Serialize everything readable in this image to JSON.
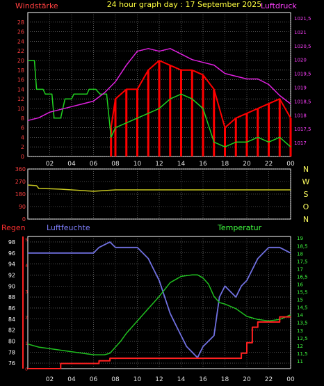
{
  "header": {
    "left_title": "Windstärke",
    "center_title": "24 hour graph day : 17 September 2025",
    "right_title": "Luftdruck"
  },
  "colors": {
    "background": "#000000",
    "grid": "#8a8a8a",
    "frame": "#ffffff",
    "wind": "#ff0000",
    "gust": "#20d020",
    "wind_bars": "#d0f0c0",
    "pressure": "#e020e0",
    "wind_direction": "#c8c820",
    "rain": "#ff2020",
    "humidity": "#7070e0",
    "temperature": "#20c020",
    "old_wind": "#c8e8a0",
    "left_tick_text": "#ff4040",
    "right_tick_text_top": "#ff40ff",
    "right_tick_text_bottom": "#40ff40",
    "axis_text": "#e0e0e0",
    "humidity_label": "#8080ff"
  },
  "chart_data": [
    {
      "type": "line",
      "name": "wind-pressure",
      "x_ticks": [
        "02",
        "04",
        "06",
        "08",
        "10",
        "12",
        "14",
        "16",
        "18",
        "20",
        "22",
        "00"
      ],
      "ylim_left": [
        0,
        30
      ],
      "y_ticks_left": [
        "0",
        "2",
        "4",
        "6",
        "8",
        "10",
        "12",
        "14",
        "16",
        "18",
        "20",
        "22",
        "24",
        "26",
        "28"
      ],
      "ylim_right": [
        1016.5,
        1021.7
      ],
      "y_ticks_right": [
        "1017",
        "1017,5",
        "1018",
        "1018,5",
        "1019",
        "1019,5",
        "1020",
        "1020,5",
        "1021",
        "1021,5"
      ],
      "grid": true,
      "series": [
        {
          "name": "Windstärke",
          "role": "wind",
          "x": [
            7.6,
            8,
            9,
            10,
            11,
            12,
            13,
            14,
            15,
            16,
            17,
            18,
            19,
            20,
            21,
            22,
            23,
            24
          ],
          "y": [
            6,
            12,
            14,
            14,
            18,
            20,
            19,
            18,
            18,
            17,
            14,
            6,
            8,
            9,
            10,
            11,
            12,
            8
          ]
        },
        {
          "name": "",
          "role": "gust",
          "x": [
            0,
            0.6,
            0.8,
            1.4,
            1.6,
            2.2,
            2.4,
            3.0,
            3.4,
            4.0,
            4.2,
            5.4,
            5.6,
            6.2,
            6.6,
            7.2,
            7.6,
            8,
            9,
            10,
            11,
            12,
            13,
            14,
            15,
            16,
            17,
            18,
            19,
            20,
            21,
            22,
            23,
            24
          ],
          "y": [
            20,
            20,
            14,
            14,
            13,
            13,
            8,
            8,
            12,
            12,
            13,
            13,
            14,
            14,
            13,
            13,
            4,
            6,
            7,
            8,
            9,
            10,
            12,
            13,
            12,
            10,
            3,
            2,
            3,
            3,
            4,
            3,
            4,
            2
          ]
        },
        {
          "name": "Luftdruck",
          "role": "pressure",
          "x": [
            0,
            1,
            2,
            3,
            4,
            5,
            6,
            7,
            8,
            9,
            10,
            11,
            12,
            13,
            14,
            15,
            16,
            17,
            18,
            19,
            20,
            21,
            22,
            23,
            24
          ],
          "y": [
            1017.8,
            1017.9,
            1018.1,
            1018.2,
            1018.3,
            1018.4,
            1018.5,
            1018.8,
            1019.2,
            1019.8,
            1020.3,
            1020.4,
            1020.3,
            1020.4,
            1020.2,
            1020.0,
            1019.9,
            1019.8,
            1019.5,
            1019.4,
            1019.3,
            1019.3,
            1019.1,
            1018.7,
            1018.4
          ]
        }
      ]
    },
    {
      "type": "line",
      "name": "wind-direction",
      "ylim": [
        0,
        360
      ],
      "y_ticks": [
        "0",
        "90",
        "180",
        "270",
        "360"
      ],
      "direction_labels": [
        "N",
        "W",
        "S",
        "O",
        "N"
      ],
      "grid": true,
      "series": [
        {
          "name": "",
          "role": "direction",
          "x": [
            0,
            0.8,
            1,
            2,
            3,
            4,
            5,
            6,
            7,
            8,
            12,
            16,
            20,
            24
          ],
          "y": [
            245,
            240,
            220,
            218,
            215,
            210,
            205,
            200,
            205,
            210,
            210,
            210,
            210,
            210
          ]
        }
      ]
    },
    {
      "type": "line",
      "name": "rain-humidity-temperature",
      "labels": {
        "rain": "Regen",
        "humidity": "Luftfeuchte",
        "temperature": "Temperatur"
      },
      "x_ticks": [
        "02",
        "04",
        "06",
        "08",
        "10",
        "12",
        "14",
        "16",
        "18",
        "20",
        "22",
        "00"
      ],
      "ylim_humidity": [
        75,
        99
      ],
      "y_ticks_humidity": [
        "76",
        "78",
        "80",
        "82",
        "84",
        "86",
        "88",
        "90",
        "92",
        "94",
        "96",
        "98"
      ],
      "ylim_temperature": [
        10.5,
        19.1
      ],
      "y_ticks_temperature": [
        "11",
        "11,5",
        "12",
        "12,5",
        "13",
        "13,5",
        "14",
        "14,5",
        "15",
        "15,5",
        "16",
        "16,5",
        "17",
        "17,5",
        "18",
        "18,5",
        "19"
      ],
      "rain_ticks": [
        "0",
        "1",
        "2",
        "3",
        "4",
        "5"
      ],
      "grid": true,
      "series": [
        {
          "name": "Luftfeuchte",
          "role": "humidity",
          "x": [
            0,
            6,
            6.5,
            7.5,
            8,
            9,
            10,
            10.5,
            11,
            11.5,
            12,
            12.5,
            13,
            13.5,
            14,
            14.5,
            15,
            15.5,
            16,
            16.5,
            17,
            17.5,
            18,
            18.5,
            19,
            19.5,
            20,
            20.5,
            21,
            21.5,
            22,
            23,
            24
          ],
          "y": [
            96,
            96,
            97,
            98,
            97,
            97,
            97,
            96,
            95,
            93,
            91,
            88,
            85,
            83,
            81,
            79,
            78,
            77,
            79,
            80,
            81,
            88,
            90,
            89,
            88,
            90,
            91,
            93,
            95,
            96,
            97,
            97,
            96
          ]
        },
        {
          "name": "Temperatur",
          "role": "temperature",
          "x": [
            0,
            1,
            2,
            3,
            4,
            5,
            6,
            7,
            7.5,
            8,
            8.5,
            9,
            10,
            11,
            12,
            13,
            14,
            15,
            15.5,
            16,
            16.5,
            17,
            17.5,
            18,
            19,
            20,
            21,
            22,
            23,
            24
          ],
          "y": [
            12.1,
            11.9,
            11.8,
            11.7,
            11.6,
            11.5,
            11.4,
            11.4,
            11.5,
            11.9,
            12.3,
            12.8,
            13.6,
            14.4,
            15.2,
            16.1,
            16.5,
            16.6,
            16.6,
            16.4,
            16.0,
            15.2,
            14.8,
            14.7,
            14.4,
            13.9,
            13.7,
            13.6,
            13.7,
            14.0
          ]
        },
        {
          "name": "Regen",
          "role": "rain",
          "x": [
            0,
            3,
            3,
            6.5,
            6.5,
            7.5,
            7.5,
            16,
            16,
            19.5,
            19.5,
            20,
            20,
            20.5,
            20.5,
            21,
            21,
            23,
            23,
            24
          ],
          "y": [
            0,
            0,
            0.2,
            0.2,
            0.3,
            0.3,
            0.4,
            0.4,
            0.4,
            0.4,
            0.6,
            0.6,
            1.0,
            1.0,
            1.6,
            1.6,
            1.8,
            1.8,
            2.0,
            2.0
          ]
        }
      ]
    }
  ]
}
